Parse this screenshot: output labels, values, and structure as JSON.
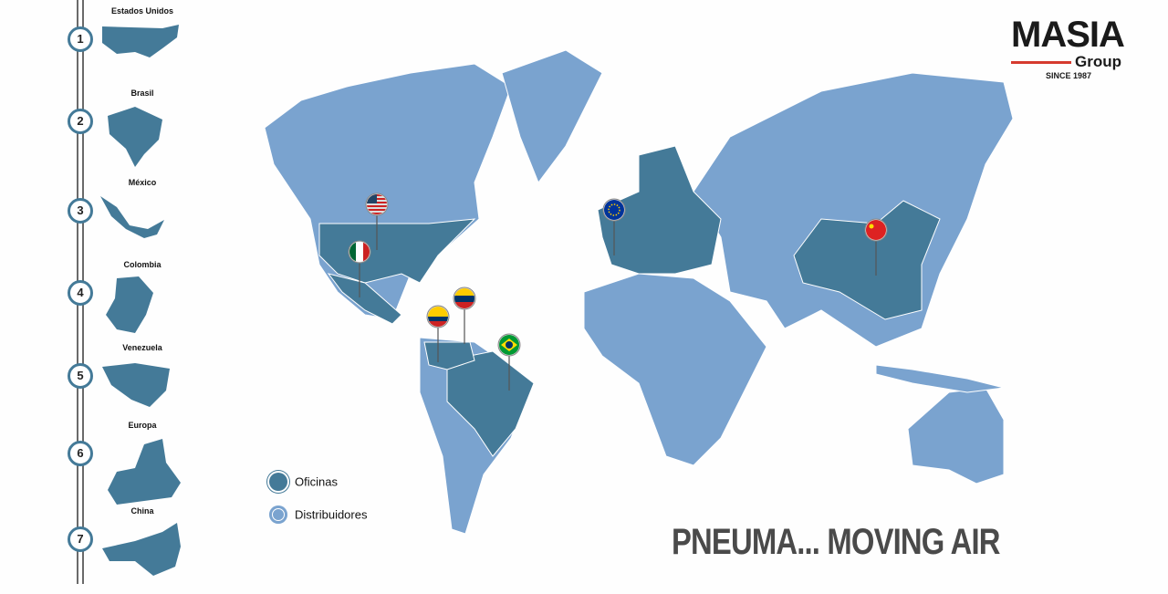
{
  "logo": {
    "name": "MASIA",
    "sub": "Group",
    "since": "SINCE 1987"
  },
  "colors": {
    "oficinas": "#447a98",
    "distribuidores": "#7aa3cf",
    "accent": "#d63b2f"
  },
  "steps": [
    {
      "n": "1",
      "label": "Estados Unidos"
    },
    {
      "n": "2",
      "label": "Brasil"
    },
    {
      "n": "3",
      "label": "México"
    },
    {
      "n": "4",
      "label": "Colombia"
    },
    {
      "n": "5",
      "label": "Venezuela"
    },
    {
      "n": "6",
      "label": "Europa"
    },
    {
      "n": "7",
      "label": "China"
    }
  ],
  "legend": {
    "oficinas": "Oficinas",
    "distribuidores": "Distribuidores"
  },
  "tagline": "PNEUMA... MOVING AIR",
  "pins": [
    "usa-flag",
    "mexico-flag",
    "colombia-flag",
    "venezuela-flag",
    "brazil-flag",
    "eu-flag",
    "china-flag"
  ]
}
